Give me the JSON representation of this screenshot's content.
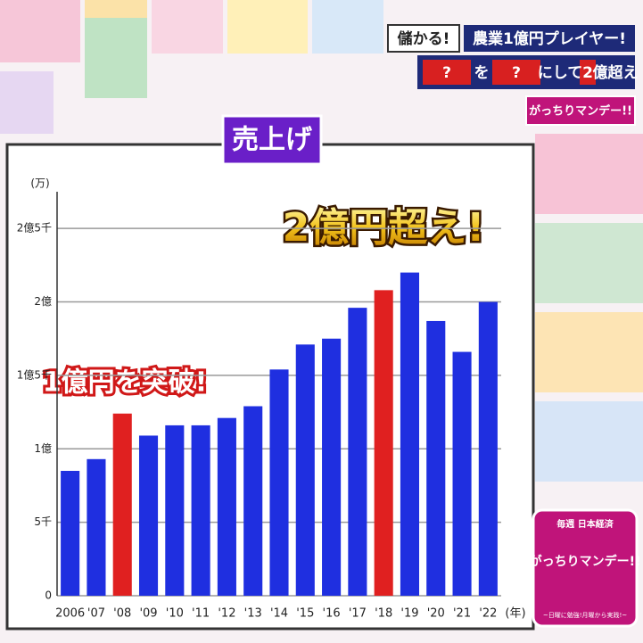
{
  "header": {
    "tag": "儲かる!",
    "headline": "農業1億円プレイヤー!",
    "quiz": [
      "?",
      "を",
      "?",
      "にして",
      "2",
      "億超え"
    ],
    "logo": "がっちりマンデー!!"
  },
  "corner_logo": {
    "top": "毎週 日本経済",
    "name": "がっちりマンデー!!",
    "slogan": "~日曜に勉強!月曜から実践!~"
  },
  "chart_data": {
    "type": "bar",
    "title": "売上げ",
    "y_unit": "(万)",
    "x_unit": "(年)",
    "annotations": [
      "1億円を突破!",
      "2億円超え!"
    ],
    "categories": [
      "2006",
      "'07",
      "'08",
      "'09",
      "'10",
      "'11",
      "'12",
      "'13",
      "'14",
      "'15",
      "'16",
      "'17",
      "'18",
      "'19",
      "'20",
      "'21",
      "'22"
    ],
    "values": [
      8500,
      9300,
      12400,
      10900,
      11600,
      11600,
      12100,
      12900,
      15400,
      17100,
      17500,
      19600,
      20800,
      22000,
      18700,
      16600,
      20000
    ],
    "colors": [
      "#1f2fe0",
      "#1f2fe0",
      "#e02020",
      "#1f2fe0",
      "#1f2fe0",
      "#1f2fe0",
      "#1f2fe0",
      "#1f2fe0",
      "#1f2fe0",
      "#1f2fe0",
      "#1f2fe0",
      "#1f2fe0",
      "#e02020",
      "#1f2fe0",
      "#1f2fe0",
      "#1f2fe0",
      "#1f2fe0"
    ],
    "ylim": [
      0,
      27500
    ],
    "yticks": [
      0,
      {
        "value": 5000,
        "label": "5千"
      },
      {
        "value": 10000,
        "label": "1億"
      },
      {
        "value": 15000,
        "label": "1億5千"
      },
      {
        "value": 20000,
        "label": "2億"
      },
      {
        "value": 25000,
        "label": "2億5千"
      }
    ],
    "grid": true
  }
}
